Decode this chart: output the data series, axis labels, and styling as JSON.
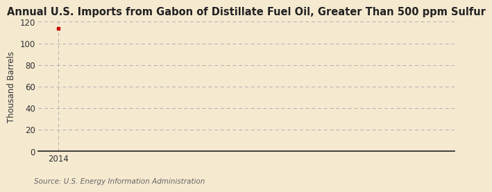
{
  "title": "Annual U.S. Imports from Gabon of Distillate Fuel Oil, Greater Than 500 ppm Sulfur",
  "ylabel": "Thousand Barrels",
  "source": "Source: U.S. Energy Information Administration",
  "background_color": "#f5e9d0",
  "plot_bg_color": "#f5e9d0",
  "data_x": [
    2014
  ],
  "data_y": [
    114
  ],
  "marker_color": "#cc0000",
  "grid_color": "#b0b0b0",
  "axis_color": "#222222",
  "ylim": [
    0,
    120
  ],
  "xlim": [
    2013.6,
    2022
  ],
  "yticks": [
    0,
    20,
    40,
    60,
    80,
    100,
    120
  ],
  "xticks": [
    2014
  ],
  "title_fontsize": 10.5,
  "label_fontsize": 8.5,
  "tick_fontsize": 8.5,
  "source_fontsize": 7.5
}
